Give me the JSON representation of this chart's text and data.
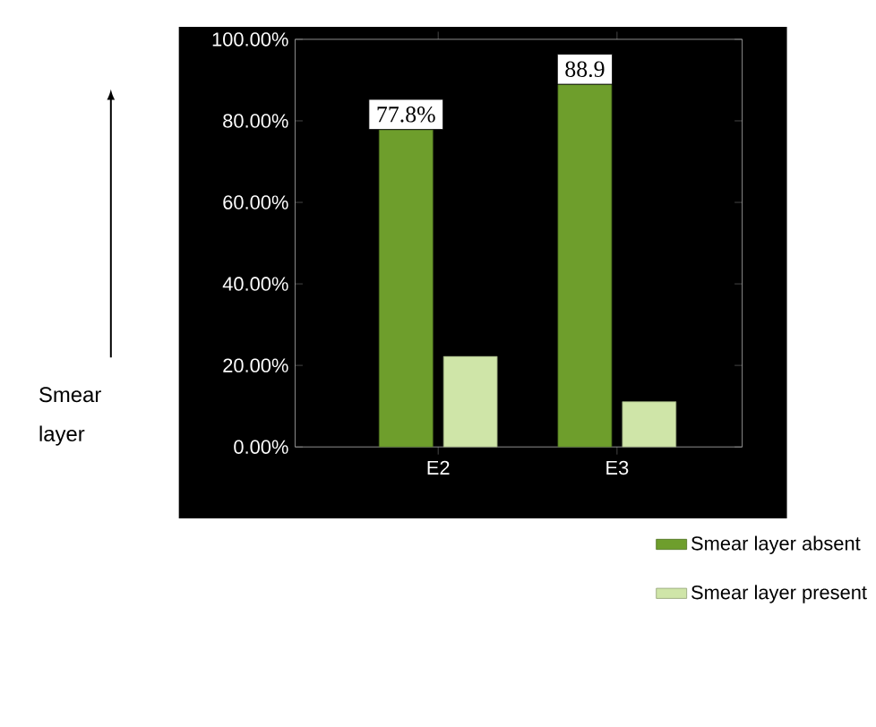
{
  "chart_data": {
    "type": "bar",
    "annotations": [
      "Smear layer"
    ],
    "categories": [
      "E2",
      "E3"
    ],
    "series": [
      {
        "name": "Smear layer absent",
        "color": "#6e9e2c",
        "values": [
          77.8,
          88.9
        ],
        "value_labels": [
          "77.8%",
          "88.9"
        ]
      },
      {
        "name": "Smear layer present",
        "color": "#cfe5a8",
        "values": [
          22.2,
          11.1
        ]
      }
    ],
    "ylim": [
      0,
      100
    ],
    "yticks": [
      {
        "value": 0,
        "label": "0.00%"
      },
      {
        "value": 20,
        "label": "20.00%"
      },
      {
        "value": 40,
        "label": "40.00%"
      },
      {
        "value": 60,
        "label": "60.00%"
      },
      {
        "value": 80,
        "label": "80.00%"
      },
      {
        "value": 100,
        "label": "100.00%"
      }
    ],
    "grid": false,
    "legend": "bottom right"
  }
}
